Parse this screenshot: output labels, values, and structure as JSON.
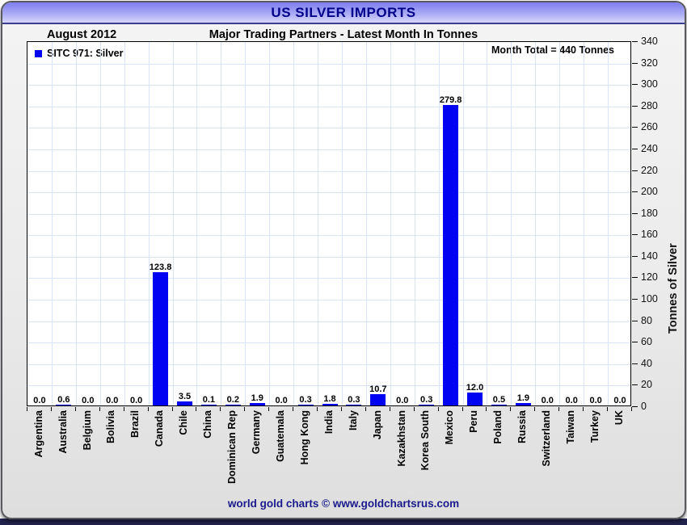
{
  "window": {
    "title": "US SILVER IMPORTS",
    "footer": "world gold charts © www.goldchartsrus.com"
  },
  "header": {
    "date_label": "August 2012",
    "subtitle": "Major Trading Partners - Latest Month In Tonnes"
  },
  "legend": {
    "label": "SITC 971: Silver"
  },
  "annotation": {
    "month_total": "Month Total = 440 Tonnes"
  },
  "colors": {
    "bar": "#0202f2",
    "grid": "#d9e5f6",
    "title_text": "#00008b",
    "footer_text": "#1a1a8c"
  },
  "chart_data": {
    "type": "bar",
    "title": "US SILVER IMPORTS",
    "subtitle": "Major Trading Partners - Latest Month In Tonnes",
    "period": "August 2012",
    "series_name": "SITC 971: Silver",
    "categories": [
      "Argentina",
      "Australia",
      "Belgium",
      "Bolivia",
      "Brazil",
      "Canada",
      "Chile",
      "China",
      "Dominican Rep",
      "Germany",
      "Guatemala",
      "Hong Kong",
      "India",
      "Italy",
      "Japan",
      "Kazakhstan",
      "Korea South",
      "Mexico",
      "Peru",
      "Poland",
      "Russia",
      "Switzerland",
      "Taiwan",
      "Turkey",
      "UK"
    ],
    "values": [
      0.0,
      0.6,
      0.0,
      0.0,
      0.0,
      123.8,
      3.5,
      0.1,
      0.2,
      1.9,
      0.0,
      0.3,
      1.8,
      0.3,
      10.7,
      0.0,
      0.3,
      279.8,
      12.0,
      0.5,
      1.9,
      0.0,
      0.0,
      0.0,
      0.0
    ],
    "value_labels": [
      "0.0",
      "0.6",
      "0.0",
      "0.0",
      "0.0",
      "123.8",
      "3.5",
      "0.1",
      "0.2",
      "1.9",
      "0.0",
      "0.3",
      "1.8",
      "0.3",
      "10.7",
      "0.0",
      "0.3",
      "279.8",
      "12.0",
      "0.5",
      "1.9",
      "0.0",
      "0.0",
      "0.0",
      "0.0"
    ],
    "xlabel": "",
    "ylabel": "Tonnes of Silver",
    "ylim": [
      0,
      340
    ],
    "ytick_step": 20,
    "yticks": [
      0,
      20,
      40,
      60,
      80,
      100,
      120,
      140,
      160,
      180,
      200,
      220,
      240,
      260,
      280,
      300,
      320,
      340
    ],
    "grid": true,
    "bar_color": "#0202f2",
    "legend_position": "top-left",
    "annotation": "Month Total = 440 Tonnes"
  }
}
